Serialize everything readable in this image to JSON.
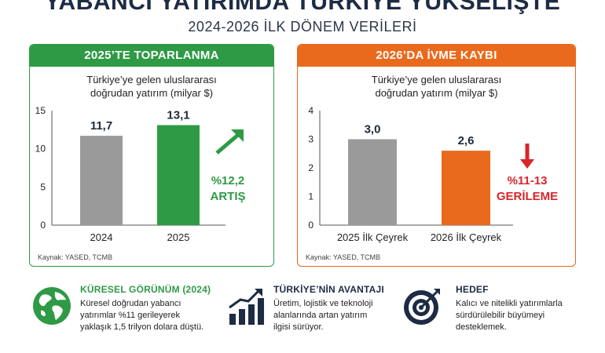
{
  "header": {
    "title": "YABANCI YATIRIMDA TÜRKİYE YÜKSELİŞTE",
    "subtitle": "2024-2026 İLK DÖNEM VERİLERİ"
  },
  "chart_data": [
    {
      "type": "bar",
      "title": "2025’TE TOPARLANMA",
      "subtitle": "Türkiye’ye gelen uluslararası doğrudan yatırım (milyar $)",
      "subtitle_lines": [
        "Türkiye’ye gelen uluslararası",
        "doğrudan yatırım (milyar $)"
      ],
      "categories": [
        "2024",
        "2025"
      ],
      "values": [
        11.7,
        13.1
      ],
      "data_labels": [
        "11,7",
        "13,1"
      ],
      "yticks": [
        "0",
        "5",
        "10",
        "15"
      ],
      "ylim": [
        0,
        15
      ],
      "bar_colors": [
        "#9a9a9a",
        "#2f9a45"
      ],
      "annotation": {
        "lines": [
          "%12,2",
          "ARTIŞ"
        ],
        "color": "#2f9a45",
        "arrow": "up-right"
      },
      "source": "Kaynak: YASED, TCMB",
      "grid": false,
      "legend": "none",
      "accent": "#2f9a45"
    },
    {
      "type": "bar",
      "title": "2026’DA İVME KAYBI",
      "subtitle": "Türkiye’ye gelen uluslararası doğrudan yatırım (milyar $)",
      "subtitle_lines": [
        "Türkiye’ye gelen uluslararası",
        "doğrudan yatırım (milyar $)"
      ],
      "categories": [
        "2025 İlk Çeyrek",
        "2026 İlk Çeyrek"
      ],
      "values": [
        3.0,
        2.6
      ],
      "data_labels": [
        "3,0",
        "2,6"
      ],
      "yticks": [
        "0",
        "1",
        "2",
        "3",
        "4"
      ],
      "ylim": [
        0,
        4
      ],
      "bar_colors": [
        "#9a9a9a",
        "#ea6a1d"
      ],
      "annotation": {
        "lines": [
          "%11-13",
          "GERİLEME"
        ],
        "color": "#d8262b",
        "arrow": "down"
      },
      "source": "Kaynak: YASED, TCMB",
      "grid": false,
      "legend": "none",
      "accent": "#ea6a1d"
    }
  ],
  "bottom": [
    {
      "icon": "globe-icon",
      "title": "KÜRESEL GÖRÜNÜM (2024)",
      "title_color": "#2f9a45",
      "lines": [
        "Küresel doğrudan yabancı",
        "yatırımlar %11 gerileyerek",
        "yaklaşık 1,5 trilyon dolara düştü."
      ]
    },
    {
      "icon": "growth-chart-icon",
      "title": "TÜRKİYE’NİN AVANTAJI",
      "title_color": "#1d2b44",
      "lines": [
        "Üretim, lojistik ve teknoloji",
        "alanlarında artan yatırım",
        "ilgisi sürüyor."
      ]
    },
    {
      "icon": "target-icon",
      "title": "HEDEF",
      "title_color": "#1d2b44",
      "lines": [
        "Kalıcı ve nitelikli yatırımlarla",
        "sürdürülebilir büyümeyi",
        "desteklemek."
      ]
    }
  ]
}
